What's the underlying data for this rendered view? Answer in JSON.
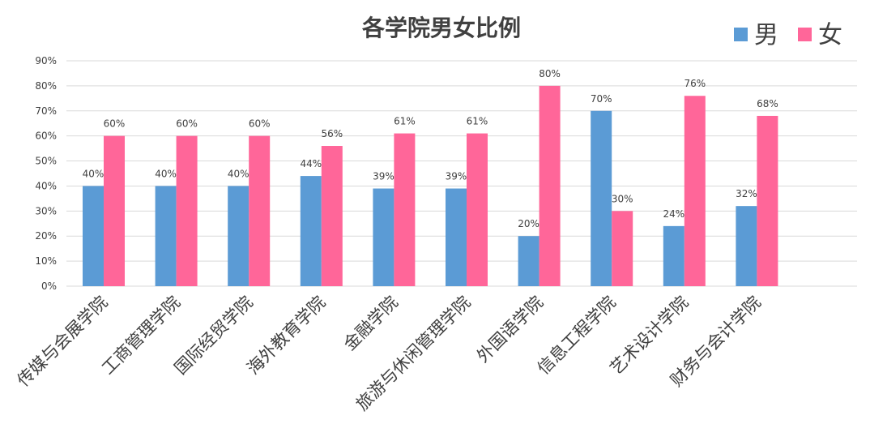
{
  "chart_data": {
    "type": "bar",
    "title": "各学院男女比例",
    "categories": [
      "传媒与会展学院",
      "工商管理学院",
      "国际经贸学院",
      "海外教育学院",
      "金融学院",
      "旅游与休闲管理学院",
      "外国语学院",
      "信息工程学院",
      "艺术设计学院",
      "财务与会计学院"
    ],
    "series": [
      {
        "name": "男",
        "color": "#5b9bd5",
        "values": [
          40,
          40,
          40,
          44,
          39,
          39,
          20,
          70,
          24,
          32
        ]
      },
      {
        "name": "女",
        "color": "#ff6699",
        "values": [
          60,
          60,
          60,
          56,
          61,
          61,
          80,
          30,
          76,
          68
        ]
      }
    ],
    "value_suffix": "%",
    "ylim": [
      0,
      90
    ],
    "yticks": [
      "0%",
      "10%",
      "20%",
      "30%",
      "40%",
      "50%",
      "60%",
      "70%",
      "80%",
      "90%"
    ],
    "grid": true,
    "legend": "top-right",
    "xlabel": "",
    "ylabel": ""
  }
}
